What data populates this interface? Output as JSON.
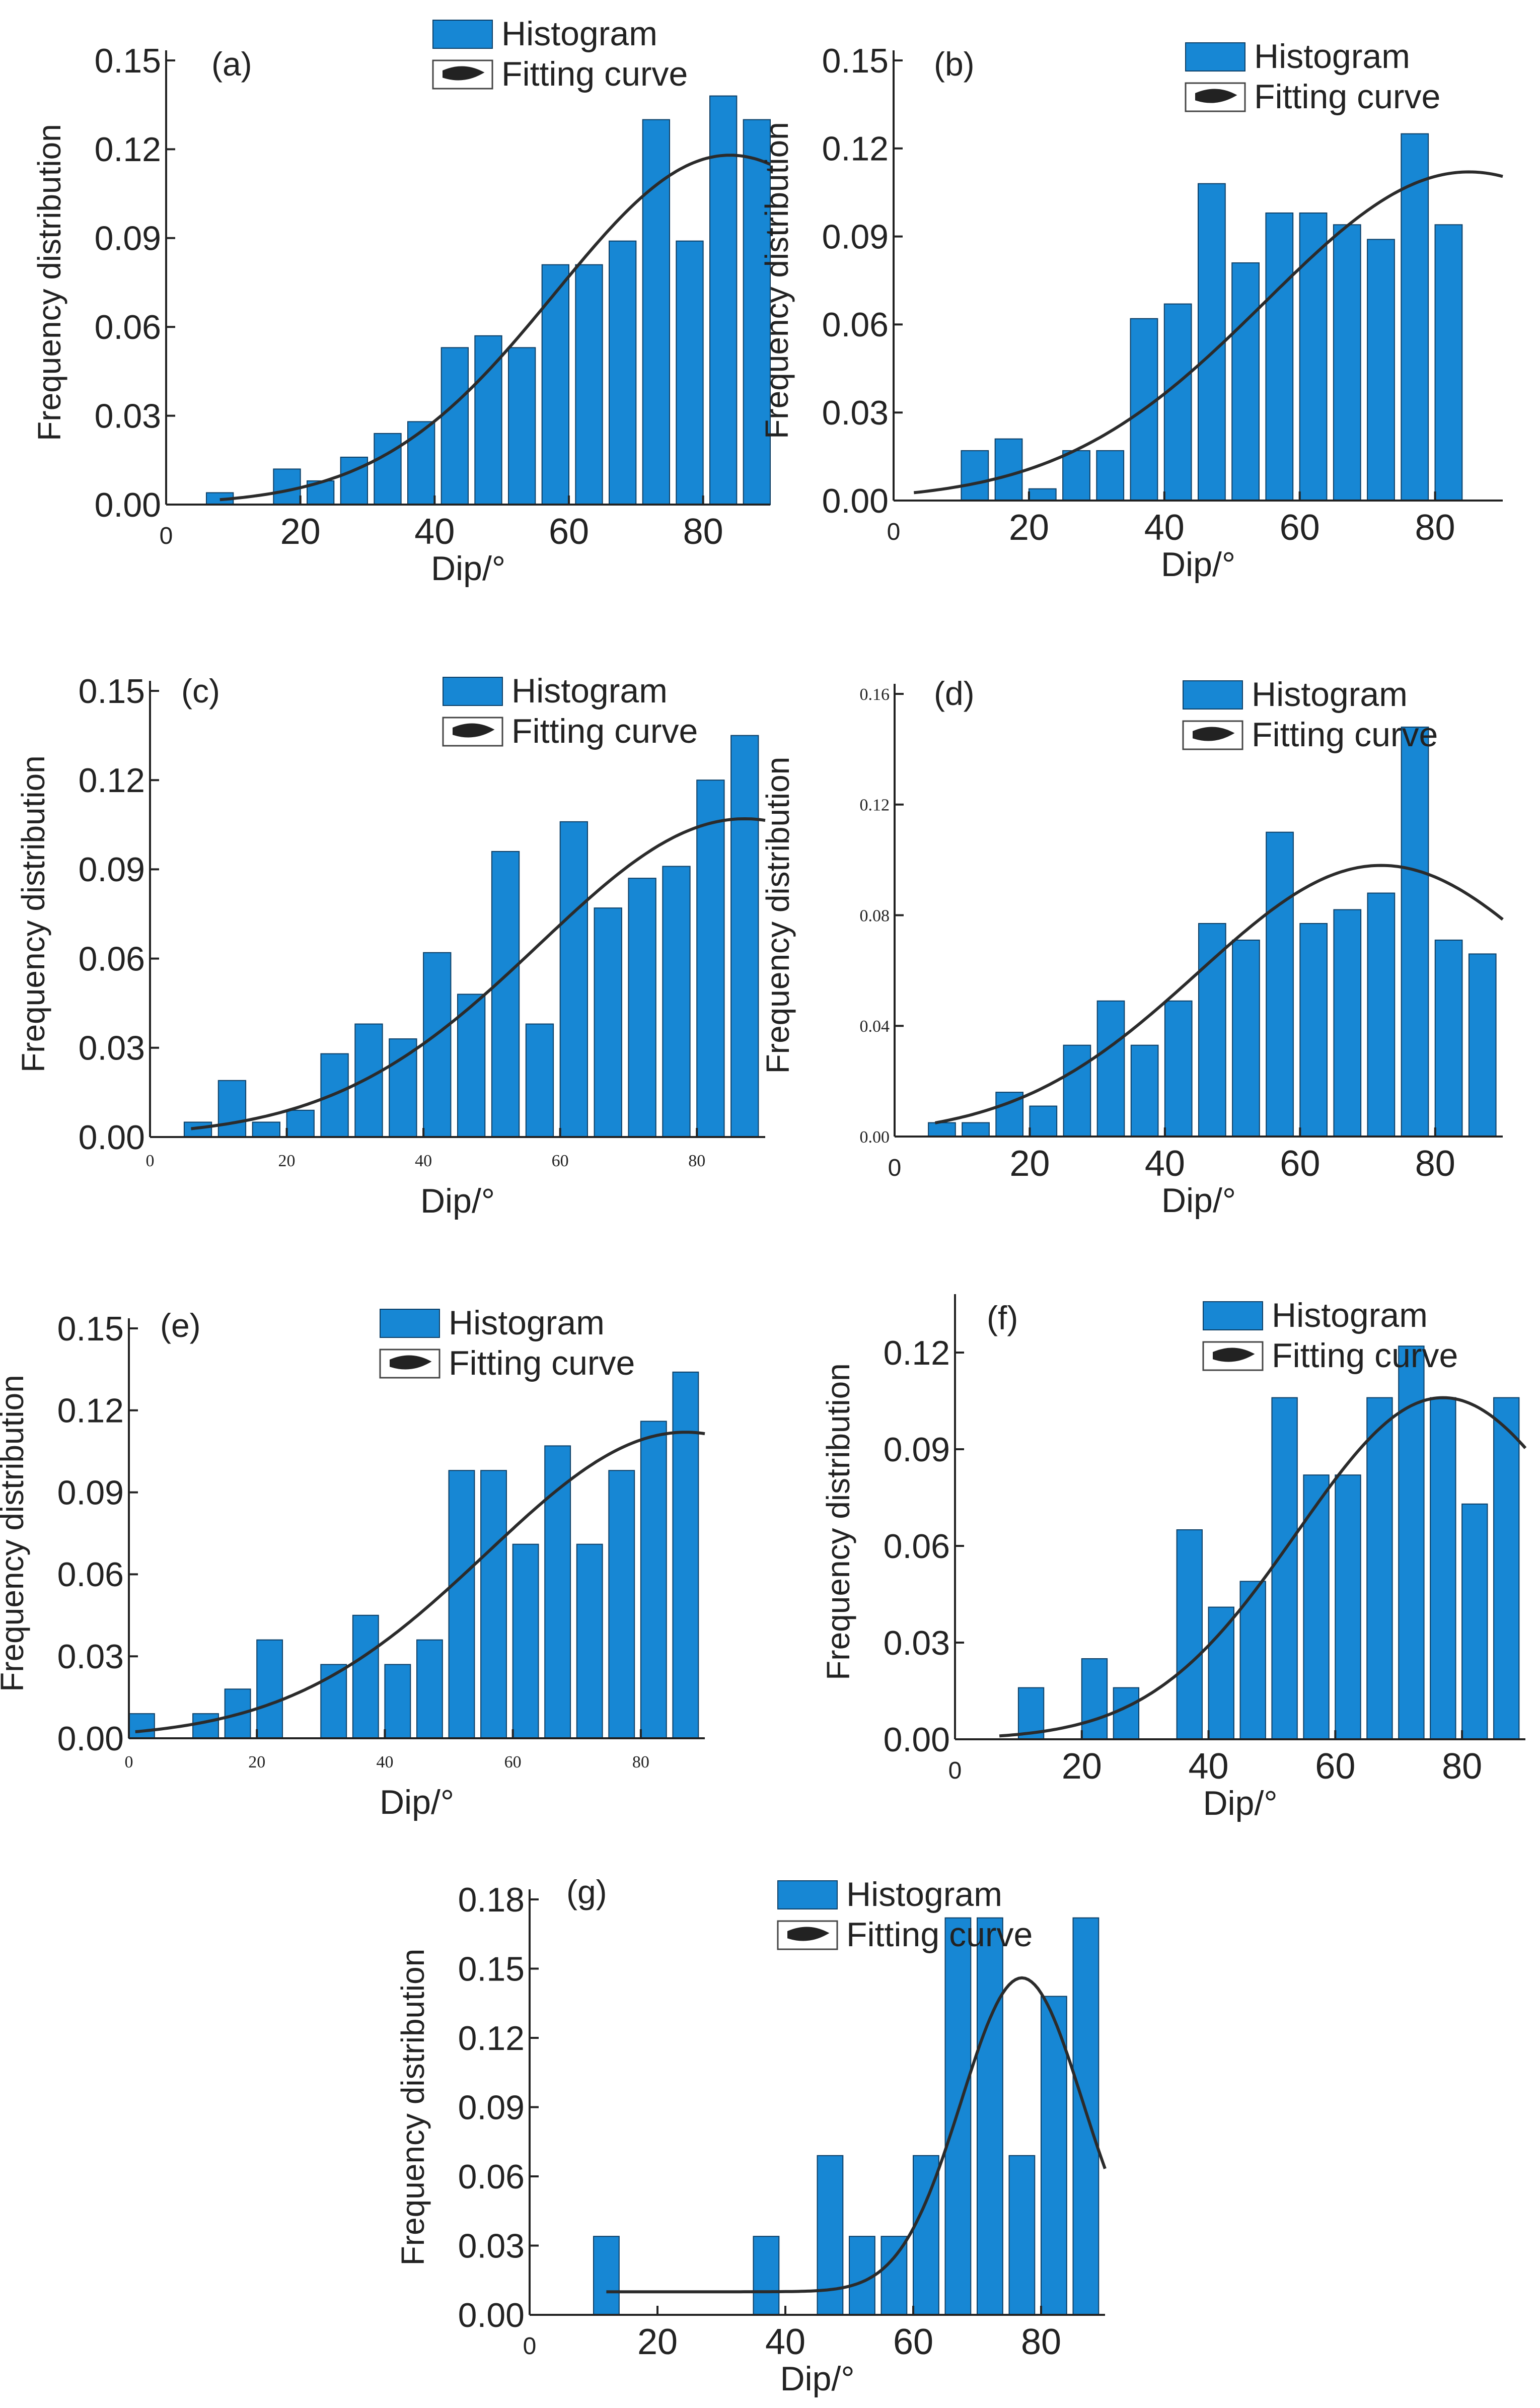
{
  "colors": {
    "bar": "#1787D4",
    "bar_stroke": "#0d3f66",
    "curve": "#2b2b2b",
    "axis": "#222222"
  },
  "legend": {
    "histogram": "Histogram",
    "fitting_curve": "Fitting curve"
  },
  "chart_data": [
    {
      "panel": "(a)",
      "type": "bar",
      "xlabel": "Dip/°",
      "ylabel": "Frequency distribution",
      "xlim": [
        0,
        90
      ],
      "ylim": [
        0,
        0.15
      ],
      "xticks": [
        "0",
        "20",
        "40",
        "60",
        "80"
      ],
      "yticks": [
        "0.00",
        "0.03",
        "0.06",
        "0.09",
        "0.12",
        "0.15"
      ],
      "centers": [
        8,
        13,
        18,
        23,
        28,
        33,
        38,
        43,
        48,
        53,
        58,
        63,
        68,
        73,
        78,
        83,
        88
      ],
      "values": [
        0.004,
        0,
        0.012,
        0.008,
        0.016,
        0.024,
        0.028,
        0.053,
        0.057,
        0.053,
        0.081,
        0.081,
        0.089,
        0.13,
        0.089,
        0.138,
        0.13
      ],
      "fit": {
        "type": "gaussian",
        "amplitude": 0.118,
        "mean": 84,
        "sigma": 26,
        "x_from": 8,
        "x_to": 90
      }
    },
    {
      "panel": "(b)",
      "type": "bar",
      "xlabel": "Dip/°",
      "ylabel": "Frequency distribution",
      "xlim": [
        0,
        90
      ],
      "ylim": [
        0,
        0.15
      ],
      "xticks": [
        "0",
        "20",
        "40",
        "60",
        "80"
      ],
      "yticks": [
        "0.00",
        "0.03",
        "0.06",
        "0.09",
        "0.12",
        "0.15"
      ],
      "centers": [
        12,
        17,
        22,
        27,
        32,
        37,
        42,
        47,
        52,
        57,
        62,
        67,
        72,
        77,
        82,
        87
      ],
      "values": [
        0.017,
        0.021,
        0.004,
        0.017,
        0.017,
        0.062,
        0.067,
        0.108,
        0.081,
        0.098,
        0.098,
        0.094,
        0.089,
        0.125,
        0.094,
        0
      ],
      "fit": {
        "type": "gaussian",
        "amplitude": 0.112,
        "mean": 85,
        "sigma": 30,
        "x_from": 3,
        "x_to": 90
      }
    },
    {
      "panel": "(c)",
      "type": "bar",
      "xlabel": "Dip/°",
      "ylabel": "Frequency distribution",
      "xlim": [
        0,
        90
      ],
      "ylim": [
        0,
        0.15
      ],
      "xticks": [
        "0",
        "20",
        "40",
        "60",
        "80"
      ],
      "yticks": [
        "0.00",
        "0.03",
        "0.06",
        "0.09",
        "0.12",
        "0.15"
      ],
      "centers": [
        7,
        12,
        17,
        22,
        27,
        32,
        37,
        42,
        47,
        52,
        57,
        62,
        67,
        72,
        77,
        82,
        87
      ],
      "values": [
        0.005,
        0.019,
        0.005,
        0.009,
        0.028,
        0.038,
        0.033,
        0.062,
        0.048,
        0.096,
        0.038,
        0.106,
        0.077,
        0.087,
        0.091,
        0.12,
        0.135
      ],
      "fit": {
        "type": "gaussian",
        "amplitude": 0.107,
        "mean": 87,
        "sigma": 30,
        "x_from": 6,
        "x_to": 90
      }
    },
    {
      "panel": "(d)",
      "type": "bar",
      "xlabel": "Dip/°",
      "ylabel": "Frequency distribution",
      "xlim": [
        0,
        90
      ],
      "ylim": [
        0,
        0.16
      ],
      "xticks": [
        "0",
        "20",
        "40",
        "60",
        "80"
      ],
      "yticks": [
        "0.00",
        "0.04",
        "0.08",
        "0.12",
        "0.16"
      ],
      "centers": [
        3,
        7,
        12,
        17,
        22,
        27,
        32,
        37,
        42,
        47,
        52,
        57,
        62,
        67,
        72,
        77,
        82,
        87
      ],
      "values": [
        0,
        0.005,
        0.005,
        0.016,
        0.011,
        0.033,
        0.049,
        0.033,
        0.049,
        0.077,
        0.071,
        0.11,
        0.077,
        0.082,
        0.088,
        0.148,
        0.071,
        0.066
      ],
      "fit": {
        "type": "gaussian",
        "amplitude": 0.098,
        "mean": 72,
        "sigma": 27,
        "x_from": 6,
        "x_to": 90
      }
    },
    {
      "panel": "(e)",
      "type": "bar",
      "xlabel": "Dip/°",
      "ylabel": "Frequency distribution",
      "xlim": [
        0,
        90
      ],
      "ylim": [
        0,
        0.15
      ],
      "xticks": [
        "0",
        "20",
        "40",
        "60",
        "80"
      ],
      "yticks": [
        "0.00",
        "0.03",
        "0.06",
        "0.09",
        "0.12",
        "0.15"
      ],
      "centers": [
        2,
        7,
        12,
        17,
        22,
        27,
        32,
        37,
        42,
        47,
        52,
        57,
        62,
        67,
        72,
        77,
        82,
        87
      ],
      "values": [
        0.009,
        0,
        0.009,
        0.018,
        0.036,
        0,
        0.027,
        0.045,
        0.027,
        0.036,
        0.098,
        0.098,
        0.071,
        0.107,
        0.071,
        0.098,
        0.116,
        0.134
      ],
      "fit": {
        "type": "gaussian",
        "amplitude": 0.112,
        "mean": 87,
        "sigma": 31,
        "x_from": 1,
        "x_to": 90
      }
    },
    {
      "panel": "(f)",
      "type": "bar",
      "xlabel": "Dip/°",
      "ylabel": "Frequency distribution",
      "xlim": [
        0,
        90
      ],
      "ylim": [
        0,
        0.135
      ],
      "xticks": [
        "0",
        "20",
        "40",
        "60",
        "80"
      ],
      "yticks": [
        "0.00",
        "0.03",
        "0.06",
        "0.09",
        "0.12"
      ],
      "centers": [
        12,
        17,
        22,
        27,
        32,
        37,
        42,
        47,
        52,
        57,
        62,
        67,
        72,
        77,
        82,
        87
      ],
      "values": [
        0.016,
        0,
        0.025,
        0.016,
        0,
        0.065,
        0.041,
        0.049,
        0.106,
        0.082,
        0.082,
        0.106,
        0.122,
        0.106,
        0.073,
        0.106
      ],
      "fit": {
        "type": "gaussian",
        "amplitude": 0.106,
        "mean": 77,
        "sigma": 23,
        "x_from": 7,
        "x_to": 90
      }
    },
    {
      "panel": "(g)",
      "type": "bar",
      "xlabel": "Dip/°",
      "ylabel": "Frequency distribution",
      "xlim": [
        0,
        90
      ],
      "ylim": [
        0,
        0.18
      ],
      "xticks": [
        "0",
        "20",
        "40",
        "60",
        "80"
      ],
      "yticks": [
        "0.00",
        "0.03",
        "0.06",
        "0.09",
        "0.12",
        "0.15",
        "0.18"
      ],
      "centers": [
        12,
        17,
        22,
        27,
        32,
        37,
        42,
        47,
        52,
        57,
        62,
        67,
        72,
        77,
        82,
        87
      ],
      "values": [
        0.034,
        0,
        0,
        0,
        0,
        0.034,
        0,
        0.069,
        0.034,
        0.034,
        0.069,
        0.172,
        0.172,
        0.069,
        0.138,
        0.172
      ],
      "fit": {
        "type": "gaussian",
        "amplitude": 0.136,
        "mean": 77,
        "sigma": 9.5,
        "offset": 0.01,
        "x_from": 12,
        "x_to": 90
      }
    }
  ]
}
